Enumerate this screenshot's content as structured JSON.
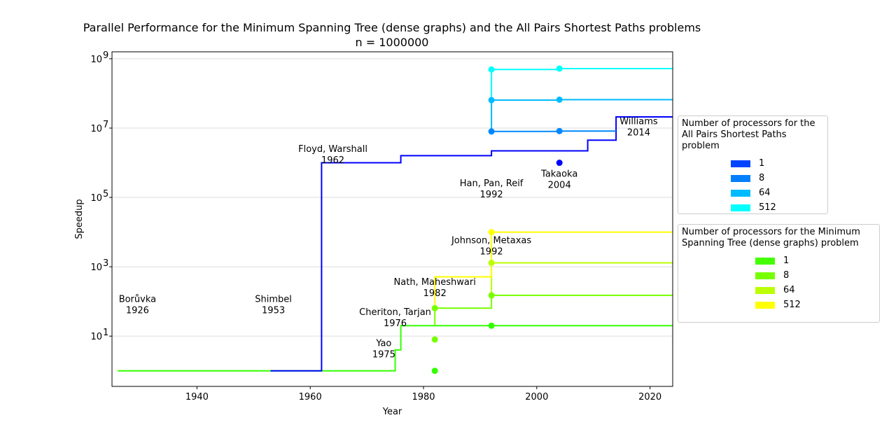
{
  "chart_data": {
    "type": "line",
    "title": "Parallel Performance for the Minimum Spanning Tree (dense graphs) and the All Pairs Shortest Paths problems",
    "subtitle": "n = 1000000",
    "xlabel": "Year",
    "ylabel": "Speedup",
    "xlim": [
      1925,
      2024
    ],
    "ylim_log10": [
      -0.45,
      9.2
    ],
    "y_scale": "log",
    "grid": "horizontal",
    "x_ticks": [
      1940,
      1960,
      1980,
      2000,
      2020
    ],
    "y_ticks": [
      {
        "exp": 1,
        "label": "10",
        "sup": "1"
      },
      {
        "exp": 3,
        "label": "10",
        "sup": "3"
      },
      {
        "exp": 5,
        "label": "10",
        "sup": "5"
      },
      {
        "exp": 7,
        "label": "10",
        "sup": "7"
      },
      {
        "exp": 9,
        "label": "10",
        "sup": "9"
      }
    ],
    "series": [
      {
        "problem": "mst",
        "processors": "1",
        "color": "#33ff00",
        "step_points": [
          [
            1926,
            1
          ],
          [
            1975,
            1
          ],
          [
            1975,
            4
          ],
          [
            1976,
            4
          ],
          [
            1976,
            20
          ],
          [
            2024,
            20
          ]
        ],
        "markers": [
          [
            1982,
            1
          ],
          [
            1992,
            20
          ]
        ]
      },
      {
        "problem": "mst",
        "processors": "8",
        "color": "#77ff00",
        "step_points": [
          [
            1982,
            20
          ],
          [
            1982,
            64
          ],
          [
            1992,
            64
          ],
          [
            1992,
            150
          ],
          [
            2024,
            150
          ]
        ],
        "markers": [
          [
            1982,
            8
          ],
          [
            1982,
            64
          ],
          [
            1992,
            150
          ]
        ]
      },
      {
        "problem": "mst",
        "processors": "64",
        "color": "#bbff00",
        "step_points": [
          [
            1992,
            150
          ],
          [
            1992,
            1300
          ],
          [
            2024,
            1300
          ]
        ],
        "markers": [
          [
            1992,
            1300
          ]
        ]
      },
      {
        "problem": "mst",
        "processors": "512",
        "color": "#ffff00",
        "step_points": [
          [
            1982,
            64
          ],
          [
            1982,
            512
          ],
          [
            1992,
            512
          ],
          [
            1992,
            10000
          ],
          [
            2024,
            10000
          ]
        ],
        "markers": [
          [
            1992,
            10000
          ]
        ]
      },
      {
        "problem": "apsp",
        "processors": "1",
        "color": "#0000ff",
        "step_points": [
          [
            1953,
            1
          ],
          [
            1962,
            1
          ],
          [
            1962,
            1000000
          ],
          [
            1976,
            1000000
          ],
          [
            1976,
            1600000
          ],
          [
            1992,
            1600000
          ],
          [
            1992,
            2200000
          ],
          [
            2009,
            2200000
          ],
          [
            2009,
            4500000
          ],
          [
            2014,
            4500000
          ],
          [
            2014,
            21000000
          ],
          [
            2024,
            21000000
          ]
        ],
        "markers": [
          [
            2004,
            1000000
          ]
        ]
      },
      {
        "problem": "apsp",
        "processors": "8",
        "color": "#0088ff",
        "step_points": [
          [
            1992,
            8000000
          ],
          [
            2004,
            8000000
          ],
          [
            2004,
            8200000
          ],
          [
            2014,
            8200000
          ]
        ],
        "markers": [
          [
            1992,
            8000000
          ],
          [
            2004,
            8200000
          ]
        ]
      },
      {
        "problem": "apsp",
        "processors": "64",
        "color": "#00bbff",
        "step_points": [
          [
            1992,
            8000000
          ],
          [
            1992,
            64000000
          ],
          [
            2004,
            64000000
          ],
          [
            2004,
            66000000
          ],
          [
            2024,
            66000000
          ]
        ],
        "markers": [
          [
            1992,
            64000000
          ],
          [
            2004,
            66000000
          ]
        ]
      },
      {
        "problem": "apsp",
        "processors": "512",
        "color": "#00ffff",
        "step_points": [
          [
            1992,
            64000000
          ],
          [
            1992,
            490000000
          ],
          [
            2004,
            490000000
          ],
          [
            2004,
            520000000
          ],
          [
            2024,
            520000000
          ]
        ],
        "markers": [
          [
            1992,
            490000000
          ],
          [
            2004,
            520000000
          ]
        ]
      }
    ],
    "annotations": [
      {
        "line1": "Borůvka",
        "line2": "1926",
        "x": 1929.5,
        "y": 1.92
      },
      {
        "line1": "Shimbel",
        "line2": "1953",
        "x": 1953.5,
        "y": 1.92
      },
      {
        "line1": "Floyd, Warshall",
        "line2": "1962",
        "x": 1964,
        "y": 6.25
      },
      {
        "line1": "Han, Pan, Reif",
        "line2": "1992",
        "x": 1992,
        "y": 5.26
      },
      {
        "line1": "Takaoka",
        "line2": "2004",
        "x": 2004,
        "y": 5.54
      },
      {
        "line1": "Williams",
        "line2": "2014",
        "x": 2018,
        "y": 7.05
      },
      {
        "line1": "Johnson, Metaxas",
        "line2": "1992",
        "x": 1992,
        "y": 3.62
      },
      {
        "line1": "Nath, Maheshwari",
        "line2": "1982",
        "x": 1982,
        "y": 2.42
      },
      {
        "line1": "Cheriton, Tarjan",
        "line2": "1976",
        "x": 1975,
        "y": 1.55
      },
      {
        "line1": "Yao",
        "line2": "1975",
        "x": 1973,
        "y": 0.65
      }
    ],
    "legends": [
      {
        "title": "Number of processors for the All Pairs Shortest Paths problem",
        "entries": [
          {
            "label": "1",
            "color": "#0044ff"
          },
          {
            "label": "8",
            "color": "#0080ff"
          },
          {
            "label": "64",
            "color": "#00bbff"
          },
          {
            "label": "512",
            "color": "#00ffff"
          }
        ]
      },
      {
        "title": "Number of processors for the Minimum Spanning Tree (dense graphs) problem",
        "entries": [
          {
            "label": "1",
            "color": "#44ff00"
          },
          {
            "label": "8",
            "color": "#77ff00"
          },
          {
            "label": "64",
            "color": "#bbff00"
          },
          {
            "label": "512",
            "color": "#ffff00"
          }
        ]
      }
    ]
  }
}
